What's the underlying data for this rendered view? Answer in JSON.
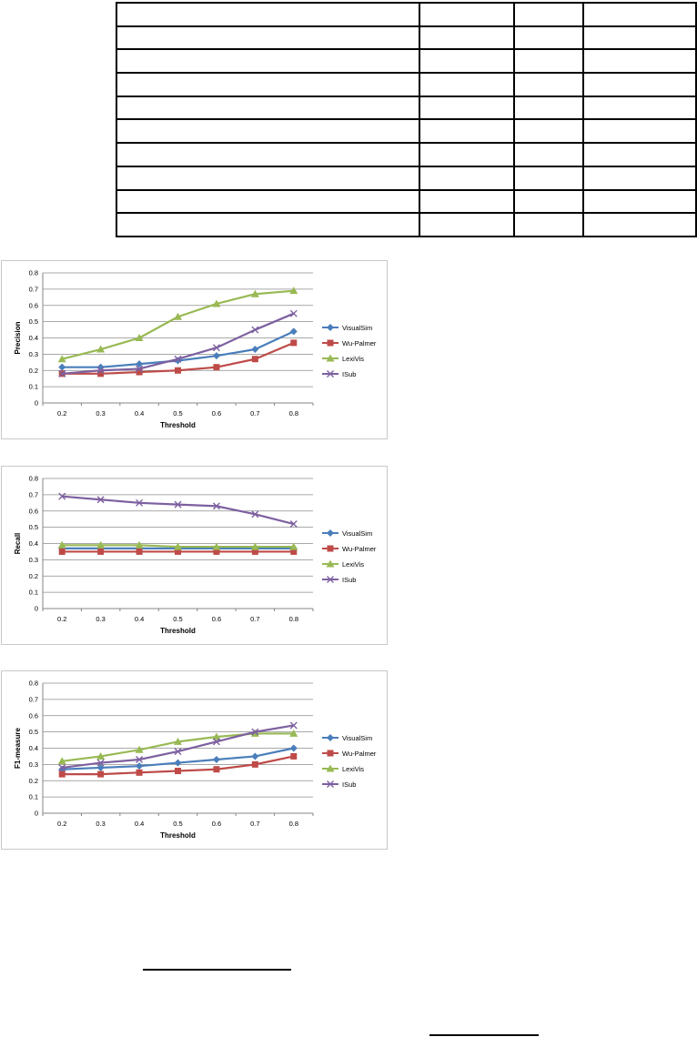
{
  "table": {
    "rows": 10,
    "cols": 4
  },
  "series_styles": [
    {
      "name": "VisualSim",
      "color": "#4a7ebb",
      "marker": "diamond"
    },
    {
      "name": "Wu-Palmer",
      "color": "#be4b48",
      "marker": "square"
    },
    {
      "name": "LexiVis",
      "color": "#98b954",
      "marker": "triangle"
    },
    {
      "name": "ISub",
      "color": "#7d60a0",
      "marker": "x"
    }
  ],
  "chart_data": [
    {
      "type": "line",
      "xlabel": "Threshold",
      "ylabel": "Precision",
      "categories": [
        "0.2",
        "0.3",
        "0.4",
        "0.5",
        "0.6",
        "0.7",
        "0.8"
      ],
      "ylim": [
        0,
        0.8
      ],
      "yticks": [
        "0",
        "0.1",
        "0.2",
        "0.3",
        "0.4",
        "0.5",
        "0.6",
        "0.7",
        "0.8"
      ],
      "grid": true,
      "legend": "right",
      "series": [
        {
          "name": "VisualSim",
          "values": [
            0.22,
            0.22,
            0.24,
            0.26,
            0.29,
            0.33,
            0.44
          ]
        },
        {
          "name": "Wu-Palmer",
          "values": [
            0.18,
            0.18,
            0.19,
            0.2,
            0.22,
            0.27,
            0.37
          ]
        },
        {
          "name": "LexiVis",
          "values": [
            0.27,
            0.33,
            0.4,
            0.53,
            0.61,
            0.67,
            0.69
          ]
        },
        {
          "name": "ISub",
          "values": [
            0.18,
            0.2,
            0.21,
            0.27,
            0.34,
            0.45,
            0.55
          ]
        }
      ]
    },
    {
      "type": "line",
      "xlabel": "Threshold",
      "ylabel": "Recall",
      "categories": [
        "0.2",
        "0.3",
        "0.4",
        "0.5",
        "0.6",
        "0.7",
        "0.8"
      ],
      "ylim": [
        0,
        0.8
      ],
      "yticks": [
        "0",
        "0.1",
        "0.2",
        "0.3",
        "0.4",
        "0.5",
        "0.6",
        "0.7",
        "0.8"
      ],
      "grid": true,
      "legend": "right",
      "series": [
        {
          "name": "VisualSim",
          "values": [
            0.37,
            0.37,
            0.37,
            0.37,
            0.37,
            0.37,
            0.37
          ]
        },
        {
          "name": "Wu-Palmer",
          "values": [
            0.35,
            0.35,
            0.35,
            0.35,
            0.35,
            0.35,
            0.35
          ]
        },
        {
          "name": "LexiVis",
          "values": [
            0.39,
            0.39,
            0.39,
            0.38,
            0.38,
            0.38,
            0.38
          ]
        },
        {
          "name": "ISub",
          "values": [
            0.69,
            0.67,
            0.65,
            0.64,
            0.63,
            0.58,
            0.52
          ]
        }
      ]
    },
    {
      "type": "line",
      "xlabel": "Threshold",
      "ylabel": "F1-measure",
      "categories": [
        "0.2",
        "0.3",
        "0.4",
        "0.5",
        "0.6",
        "0.7",
        "0.8"
      ],
      "ylim": [
        0,
        0.8
      ],
      "yticks": [
        "0",
        "0.1",
        "0.2",
        "0.3",
        "0.4",
        "0.5",
        "0.6",
        "0.7",
        "0.8"
      ],
      "grid": true,
      "legend": "right",
      "series": [
        {
          "name": "VisualSim",
          "values": [
            0.27,
            0.28,
            0.29,
            0.31,
            0.33,
            0.35,
            0.4
          ]
        },
        {
          "name": "Wu-Palmer",
          "values": [
            0.24,
            0.24,
            0.25,
            0.26,
            0.27,
            0.3,
            0.35
          ]
        },
        {
          "name": "LexiVis",
          "values": [
            0.32,
            0.35,
            0.39,
            0.44,
            0.47,
            0.49,
            0.49
          ]
        },
        {
          "name": "ISub",
          "values": [
            0.28,
            0.31,
            0.33,
            0.38,
            0.44,
            0.5,
            0.54
          ]
        }
      ]
    }
  ]
}
